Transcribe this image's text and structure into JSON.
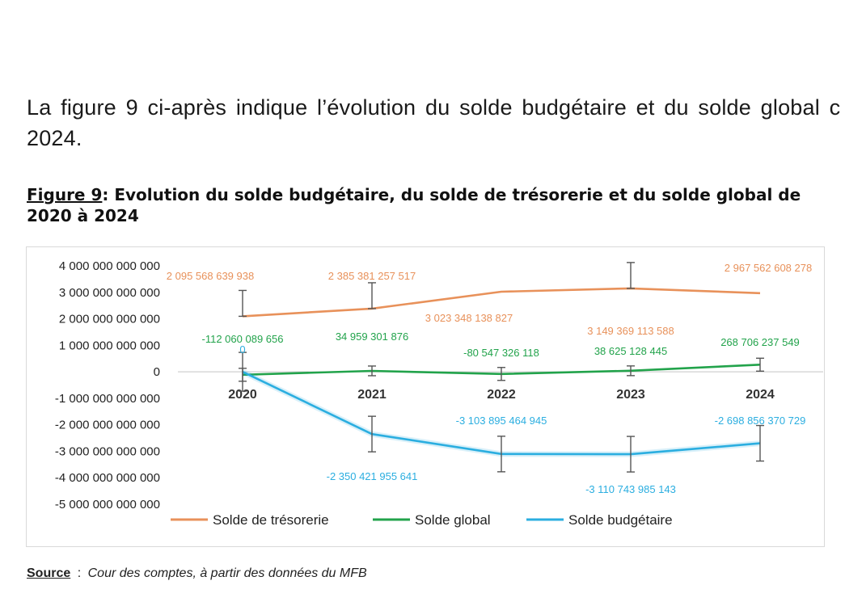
{
  "intro": {
    "line1": "La figure 9 ci-après indique l’évolution du solde budgétaire et du solde global c",
    "line2": "2024."
  },
  "figure": {
    "label": "Figure 9",
    "title": ": Evolution du solde budgétaire, du solde de trésorerie et du solde global de 2020 à 2024"
  },
  "source": {
    "label": "Source",
    "separator": ":",
    "text": "Cour des comptes, à partir des données du MFB"
  },
  "chart_data": {
    "type": "line",
    "title": "Evolution du solde budgétaire, du solde de trésorerie et du solde global de 2020 à 2024",
    "categories": [
      "2020",
      "2021",
      "2022",
      "2023",
      "2024"
    ],
    "ylim": [
      -5000000000000,
      4000000000000
    ],
    "y_ticks": [
      {
        "value": 4000000000000,
        "label": "4 000 000 000 000"
      },
      {
        "value": 3000000000000,
        "label": "3 000 000 000 000"
      },
      {
        "value": 2000000000000,
        "label": "2 000 000 000 000"
      },
      {
        "value": 1000000000000,
        "label": "1 000 000 000 000"
      },
      {
        "value": 0,
        "label": "0"
      },
      {
        "value": -1000000000000,
        "label": "-1 000 000 000 000"
      },
      {
        "value": -2000000000000,
        "label": "-2 000 000 000 000"
      },
      {
        "value": -3000000000000,
        "label": "-3 000 000 000 000"
      },
      {
        "value": -4000000000000,
        "label": "-4 000 000 000 000"
      },
      {
        "value": -5000000000000,
        "label": "-5 000 000 000 000"
      }
    ],
    "grid": false,
    "legend_position": "bottom",
    "series": [
      {
        "name": "Solde de trésorerie",
        "color": "#E8915A",
        "values": [
          2095568639938,
          2385381257517,
          3023348138827,
          3149369113588,
          2967562608278
        ],
        "labels": [
          "2 095 568 639 938",
          "2 385 381 257 517",
          "3 023 348 138 827",
          "3 149 369 113 588",
          "2 967 562 608 278"
        ]
      },
      {
        "name": "Solde global",
        "color": "#22A34B",
        "values": [
          -112060089656,
          34959301876,
          -80547326118,
          38625128445,
          268706237549
        ],
        "labels": [
          "-112 060 089 656",
          "34 959 301 876",
          "-80 547 326 118",
          "38 625 128 445",
          "268 706 237 549"
        ]
      },
      {
        "name": "Solde budgétaire",
        "color": "#2BAEE0",
        "values": [
          0,
          -2350421955641,
          -3103895464945,
          -3110743985143,
          -2698856370729
        ],
        "labels": [
          "0",
          "-2 350 421 955 641",
          "-3 103 895 464 945",
          "-3 110 743 985 143",
          "-2 698 856 370 729"
        ]
      }
    ]
  }
}
